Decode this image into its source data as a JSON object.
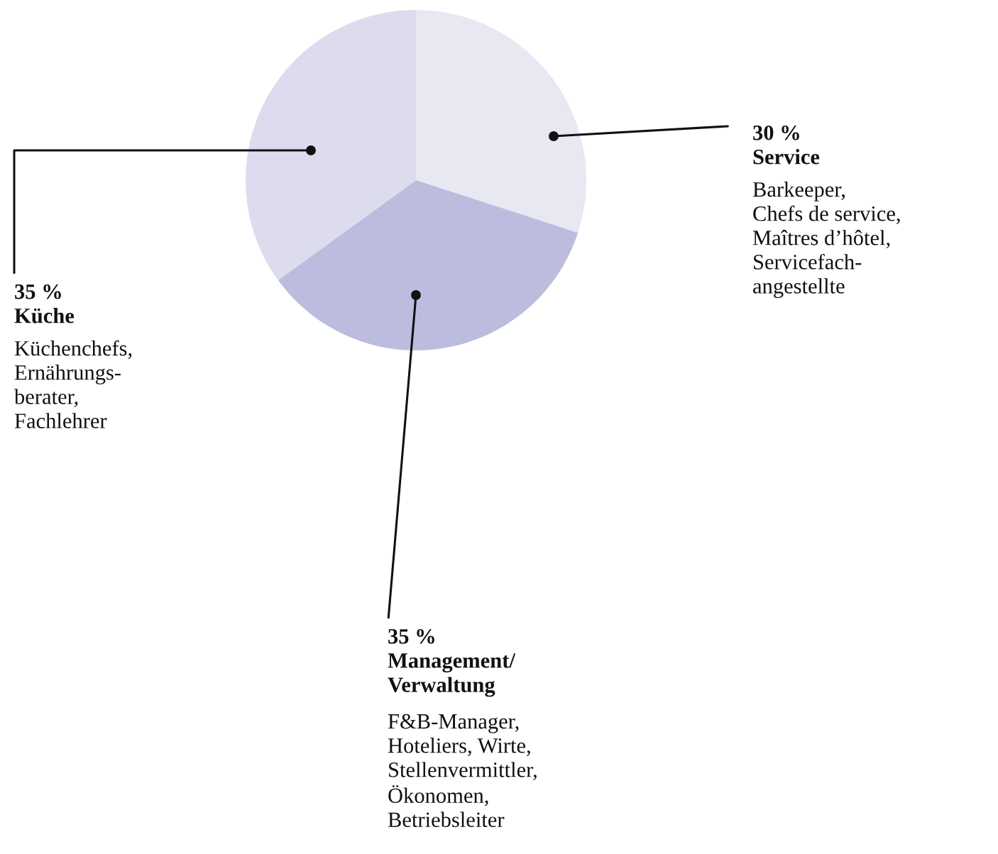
{
  "chart_data": {
    "type": "pie",
    "categories": [
      "Service",
      "Management/\nVerwaltung",
      "Küche"
    ],
    "values": [
      30,
      35,
      35
    ],
    "colors": [
      "#e8e8f3",
      "#bcbcdf",
      "#dcdcee"
    ],
    "value_labels": [
      "30 %",
      "35 %",
      "35 %"
    ],
    "annotations": [
      "Barkeeper,\nChefs de service,\nMaîtres d’hôtel,\nServicefach-\nangestellte",
      "F&B-Manager,\nHoteliers, Wirte,\nStellenvermittler,\nÖkonomen,\nBetriebsleiter",
      "Küchenchefs,\nErnährungs-\nberater,\nFachlehrer"
    ]
  }
}
